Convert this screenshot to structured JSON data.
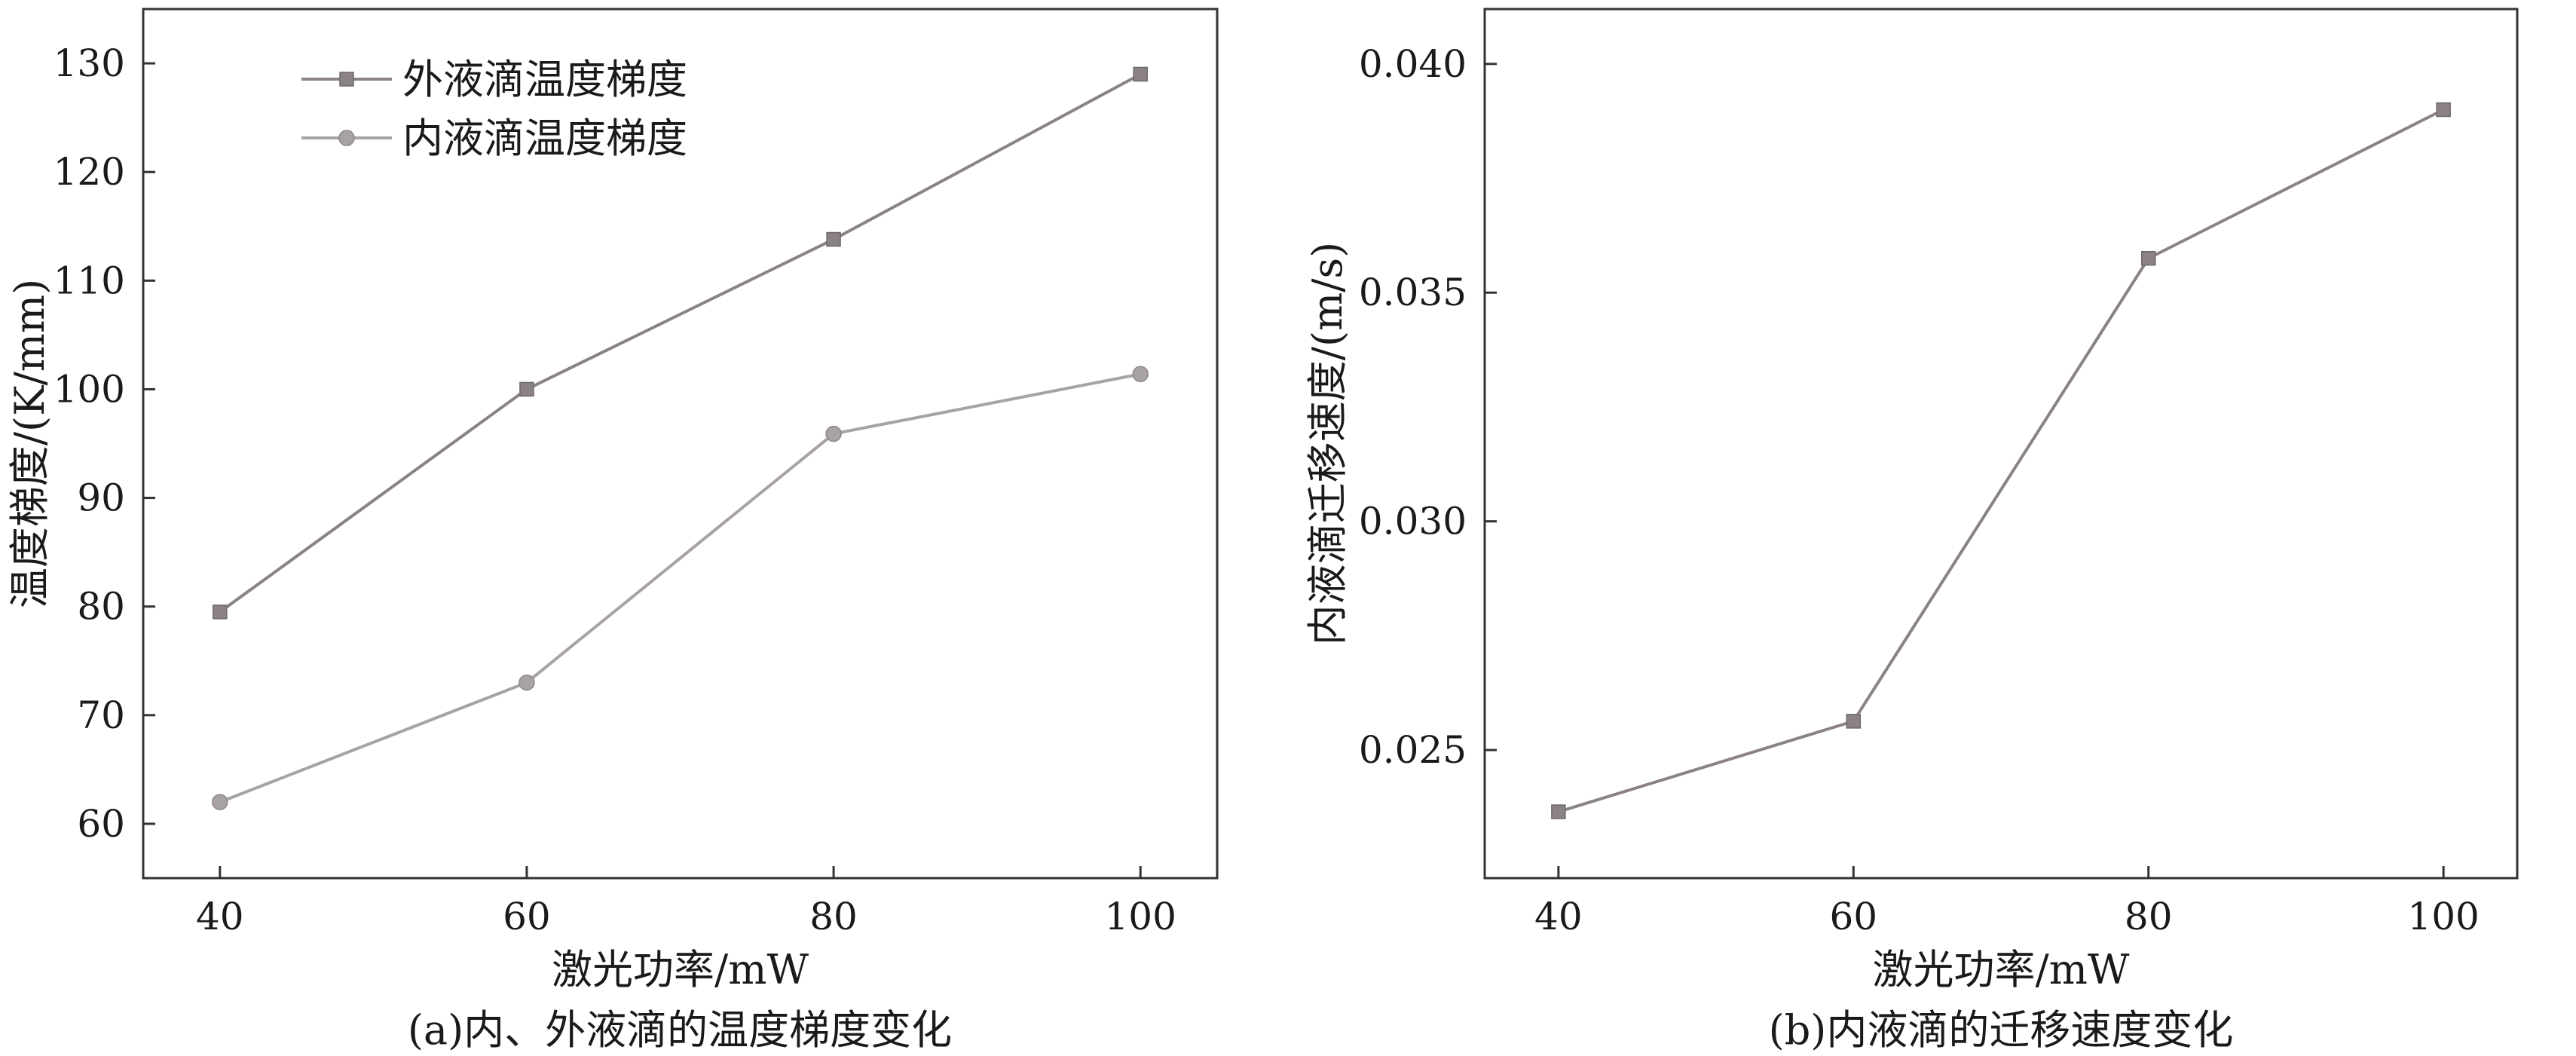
{
  "chart_data": [
    {
      "id": "a",
      "type": "line",
      "caption": "(a)内、外液滴的温度梯度变化",
      "xlabel": "激光功率/mW",
      "ylabel": "温度梯度/(K/mm)",
      "x": [
        40,
        60,
        80,
        100
      ],
      "xticks": [
        "40",
        "60",
        "80",
        "100"
      ],
      "yticks": [
        "60",
        "70",
        "80",
        "90",
        "100",
        "110",
        "120",
        "130"
      ],
      "xlim": [
        35,
        105
      ],
      "ylim": [
        55,
        135
      ],
      "grid": false,
      "legend_position": "top-left",
      "series": [
        {
          "name": "外液滴温度梯度",
          "marker": "square",
          "color": "#8a8285",
          "values": [
            79.5,
            100.0,
            113.8,
            129.0
          ]
        },
        {
          "name": "内液滴温度梯度",
          "marker": "circle",
          "color": "#a8a2a4",
          "values": [
            62.0,
            73.0,
            95.9,
            101.4
          ]
        }
      ]
    },
    {
      "id": "b",
      "type": "line",
      "caption": "(b)内液滴的迁移速度变化",
      "xlabel": "激光功率/mW",
      "ylabel": "内液滴迁移速度/(m/s)",
      "x": [
        40,
        60,
        80,
        100
      ],
      "xticks": [
        "40",
        "60",
        "80",
        "100"
      ],
      "yticks": [
        "0.025",
        "0.030",
        "0.035",
        "0.040"
      ],
      "xlim": [
        35,
        105
      ],
      "ylim": [
        0.0222,
        0.0412
      ],
      "grid": false,
      "series": [
        {
          "marker": "square",
          "color": "#8a8285",
          "values": [
            0.02365,
            0.02563,
            0.03575,
            0.039
          ]
        }
      ]
    }
  ]
}
